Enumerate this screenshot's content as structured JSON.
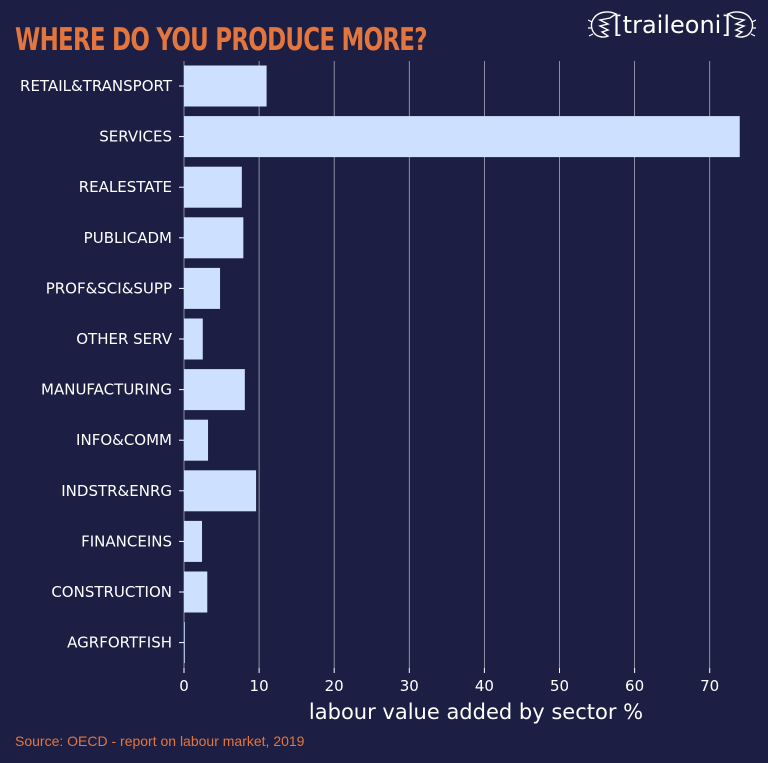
{
  "brand": {
    "logo_text": "[traileoni]"
  },
  "footer": {
    "source": "Source: OECD - report on labour market, 2019"
  },
  "colors": {
    "background": "#1c1f43",
    "bar": "#cde0ff",
    "accent": "#e3763f",
    "text": "#ffffff",
    "grid": "#d8dae8"
  },
  "chart_data": {
    "type": "bar",
    "orientation": "horizontal",
    "title": "WHERE DO YOU PRODUCE MORE?",
    "xlabel": "labour value added by sector %",
    "ylabel": "",
    "xlim": [
      0,
      75
    ],
    "xticks": [
      0,
      10,
      20,
      30,
      40,
      50,
      60,
      70
    ],
    "grid": "vertical",
    "categories": [
      "RETAIL&TRANSPORT",
      "SERVICES",
      "REALESTATE",
      "PUBLICADM",
      "PROF&SCI&SUPP",
      "OTHER SERV",
      "MANUFACTURING",
      "INFO&COMM",
      "INDSTR&ENRG",
      "FINANCEINS",
      "CONSTRUCTION",
      "AGRFORTFISH"
    ],
    "values": [
      11.0,
      74.0,
      7.7,
      7.9,
      4.8,
      2.5,
      8.1,
      3.2,
      9.6,
      2.4,
      3.1,
      0.1
    ]
  }
}
